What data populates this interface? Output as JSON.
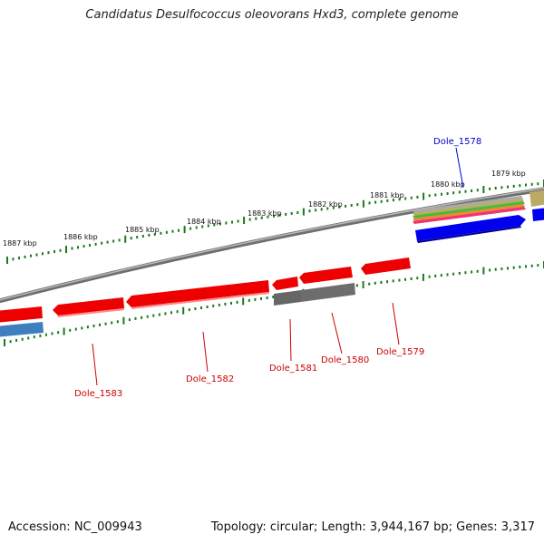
{
  "title": "Candidatus Desulfococcus oleovorans Hxd3, complete genome",
  "accession": "Accession: NC_009943",
  "genome_info": "Topology: circular; Length: 3,944,167 bp; Genes: 3,317",
  "colors": {
    "backbone": "#888888",
    "tick": "#1a7a1a",
    "gene_red": "#ee0000",
    "gene_grey": "#666666",
    "gene_blue": "#0000ee",
    "gene_steelblue": "#3f7fbf",
    "gene_olive": "#bbaa66",
    "label_red": "#cc0000",
    "label_blue": "#0000cc"
  },
  "kbp_labels": [
    "1887 kbp",
    "1886 kbp",
    "1885 kbp",
    "1884 kbp",
    "1883 kbp",
    "1882 kbp",
    "1881 kbp",
    "1880 kbp",
    "1879 kbp"
  ],
  "gene_labels": [
    {
      "name": "Dole_1578",
      "color": "blue"
    },
    {
      "name": "Dole_1579",
      "color": "red"
    },
    {
      "name": "Dole_1580",
      "color": "red"
    },
    {
      "name": "Dole_1581",
      "color": "red"
    },
    {
      "name": "Dole_1582",
      "color": "red"
    },
    {
      "name": "Dole_1583",
      "color": "red"
    }
  ]
}
